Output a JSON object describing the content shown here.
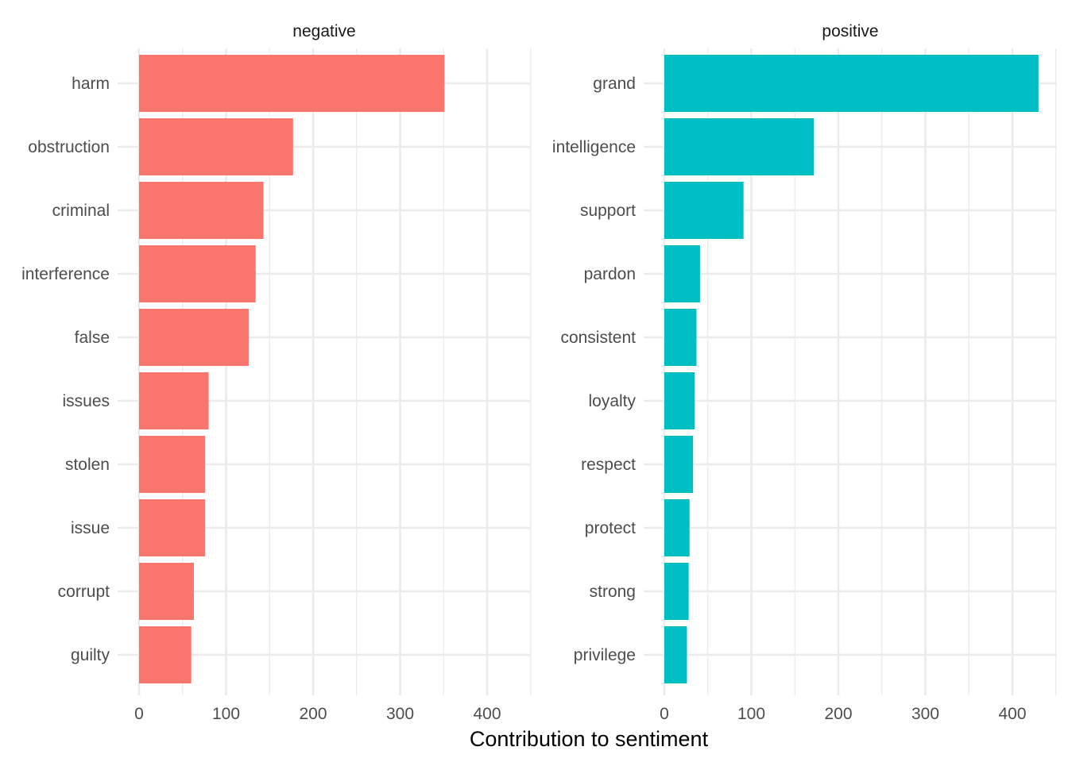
{
  "chart_data": {
    "type": "bar",
    "orientation": "horizontal",
    "xlabel": "Contribution to sentiment",
    "ylabel": "",
    "xlim": [
      0,
      450
    ],
    "xticks": [
      0,
      100,
      200,
      300,
      400
    ],
    "grid": true,
    "legend": "none",
    "facets": [
      {
        "name": "negative",
        "color": "#F8766D",
        "categories": [
          "harm",
          "obstruction",
          "criminal",
          "interference",
          "false",
          "issues",
          "stolen",
          "issue",
          "corrupt",
          "guilty"
        ],
        "values": [
          351,
          177,
          143,
          134,
          126,
          80,
          76,
          76,
          63,
          60
        ]
      },
      {
        "name": "positive",
        "color": "#00BFC4",
        "categories": [
          "grand",
          "intelligence",
          "support",
          "pardon",
          "consistent",
          "loyalty",
          "respect",
          "protect",
          "strong",
          "privilege"
        ],
        "values": [
          430,
          172,
          91,
          41,
          37,
          35,
          33,
          29,
          28,
          26
        ]
      }
    ]
  }
}
